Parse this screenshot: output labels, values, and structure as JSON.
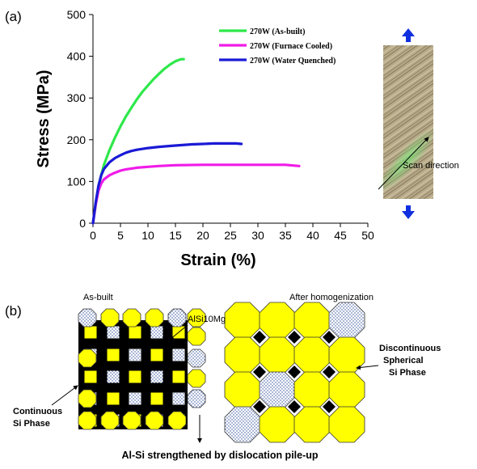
{
  "panels": {
    "a": "(a)",
    "b": "(b)"
  },
  "chart_data": {
    "type": "line",
    "xlabel": "Strain (%)",
    "ylabel": "Stress (MPa)",
    "xlim": [
      0,
      50
    ],
    "ylim": [
      0,
      500
    ],
    "xticks": [
      "0",
      "5",
      "10",
      "15",
      "20",
      "25",
      "30",
      "35",
      "40",
      "45",
      "50"
    ],
    "yticks": [
      "0",
      "100",
      "200",
      "300",
      "400",
      "500"
    ],
    "grid": false,
    "legend_position": "top-right",
    "series": [
      {
        "name": "270W (As-built)",
        "color": "#2ee84a",
        "x": [
          0,
          0.5,
          1,
          1.5,
          2,
          3,
          4,
          5,
          6,
          7,
          8,
          9,
          10,
          11,
          12,
          13,
          14,
          15,
          16,
          16.5
        ],
        "y": [
          0,
          45,
          85,
          115,
          140,
          175,
          205,
          232,
          256,
          277,
          297,
          315,
          330,
          345,
          358,
          370,
          380,
          388,
          393,
          393
        ]
      },
      {
        "name": "270W (Furnace Cooled)",
        "color": "#f01ce8",
        "x": [
          0,
          0.5,
          1,
          1.5,
          2,
          3,
          4,
          5,
          6,
          8,
          10,
          12,
          15,
          20,
          25,
          30,
          35,
          37.5
        ],
        "y": [
          0,
          45,
          78,
          95,
          105,
          115,
          121,
          126,
          129,
          133,
          135,
          137,
          139,
          140,
          140,
          140,
          140,
          137
        ]
      },
      {
        "name": "270W (Water Quenched)",
        "color": "#1a1ad6",
        "x": [
          0,
          0.5,
          1,
          1.5,
          2,
          3,
          4,
          5,
          6,
          7,
          8,
          10,
          12,
          14,
          16,
          18,
          20,
          22,
          24,
          26,
          27
        ],
        "y": [
          0,
          50,
          90,
          115,
          130,
          146,
          156,
          163,
          169,
          173,
          176,
          180,
          183,
          185,
          187,
          189,
          190,
          191,
          191,
          191,
          190
        ]
      }
    ]
  },
  "micrograph": {
    "scan_label": "Scan direction"
  },
  "schematic": {
    "as_built_title": "As-built",
    "after_title": "After homogenization",
    "alsi10mg_label": "AlSi10Mg",
    "continuous_label_1": "Continuous",
    "continuous_label_2": "Si Phase",
    "discontinuous_label_1": "Discontinuous",
    "discontinuous_label_2": "Spherical",
    "discontinuous_label_3": "Si Phase",
    "bottom_caption": "Al-Si strengthened by dislocation pile-up"
  },
  "colors": {
    "yellow": "#ffff00",
    "black": "#000000",
    "blue_arrow": "#1030e0"
  }
}
